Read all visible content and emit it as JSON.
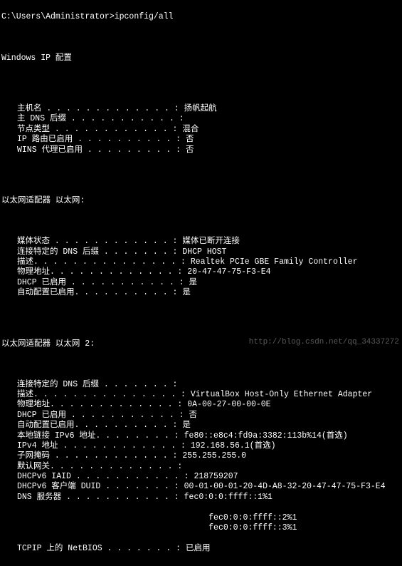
{
  "colors": {
    "bg": "#000000",
    "fg": "#ffffff",
    "watermark": "#888888"
  },
  "prompt": "C:\\Users\\Administrator>ipconfig/all",
  "header": "Windows IP 配置",
  "sections": {
    "ipconfig_main": [
      {
        "label": "主机名",
        "dots": " . . . . . . . . . . . . . ",
        "value": "扬帆起航"
      },
      {
        "label": "主 DNS 后缀",
        "dots": " . . . . . . . . . . . ",
        "value": ""
      },
      {
        "label": "节点类型",
        "dots": " . . . . . . . . . . . . ",
        "value": "混合"
      },
      {
        "label": "IP 路由已启用",
        "dots": " . . . . . . . . . . ",
        "value": "否"
      },
      {
        "label": "WINS 代理已启用",
        "dots": " . . . . . . . . . ",
        "value": "否"
      }
    ],
    "adapter1_title": "以太网适配器 以太网:",
    "adapter1": [
      {
        "label": "媒体状态",
        "dots": " . . . . . . . . . . . . ",
        "value": "媒体已断开连接"
      },
      {
        "label": "连接特定的 DNS 后缀",
        "dots": " . . . . . . . ",
        "value": "DHCP HOST"
      },
      {
        "label": "描述.",
        "dots": " . . . . . . . . . . . . . . ",
        "value": "Realtek PCIe GBE Family Controller"
      },
      {
        "label": "物理地址.",
        "dots": " . . . . . . . . . . . . ",
        "value": "20-47-47-75-F3-E4"
      },
      {
        "label": "DHCP 已启用",
        "dots": " . . . . . . . . . . . ",
        "value": "是"
      },
      {
        "label": "自动配置已启用.",
        "dots": " . . . . . . . . . ",
        "value": "是"
      }
    ],
    "adapter2_title": "以太网适配器 以太网 2:",
    "adapter2": [
      {
        "label": "连接特定的 DNS 后缀",
        "dots": " . . . . . . . ",
        "value": ""
      },
      {
        "label": "描述.",
        "dots": " . . . . . . . . . . . . . . ",
        "value": "VirtualBox Host-Only Ethernet Adapter"
      },
      {
        "label": "物理地址.",
        "dots": " . . . . . . . . . . . . ",
        "value": "0A-00-27-00-00-0E"
      },
      {
        "label": "DHCP 已启用",
        "dots": " . . . . . . . . . . . ",
        "value": "否"
      },
      {
        "label": "自动配置已启用.",
        "dots": " . . . . . . . . . ",
        "value": "是"
      },
      {
        "label": "本地链接 IPv6 地址.",
        "dots": " . . . . . . . ",
        "value": "fe80::e8c4:fd9a:3382:113b%14(首选)"
      },
      {
        "label": "IPv4 地址",
        "dots": " . . . . . . . . . . . . ",
        "value": "192.168.56.1(首选)"
      },
      {
        "label": "子网掩码",
        "dots": " . . . . . . . . . . . . ",
        "value": "255.255.255.0"
      },
      {
        "label": "默认网关.",
        "dots": " . . . . . . . . . . . . ",
        "value": ""
      },
      {
        "label": "DHCPv6 IAID",
        "dots": " . . . . . . . . . . . ",
        "value": "218759207"
      },
      {
        "label": "DHCPv6 客户端 DUID",
        "dots": " . . . . . . . ",
        "value": "00-01-00-01-20-4D-A8-32-20-47-47-75-F3-E4"
      },
      {
        "label": "DNS 服务器",
        "dots": " . . . . . . . . . . . ",
        "value": "fec0:0:0:ffff::1%1"
      }
    ],
    "dns_extra": [
      "fec0:0:0:ffff::2%1",
      "fec0:0:0:ffff::3%1"
    ],
    "netbios": {
      "label": "TCPIP 上的 NetBIOS",
      "dots": " . . . . . . . ",
      "value": "已启用"
    }
  },
  "watermark": "http://blog.csdn.net/qq_34337272"
}
